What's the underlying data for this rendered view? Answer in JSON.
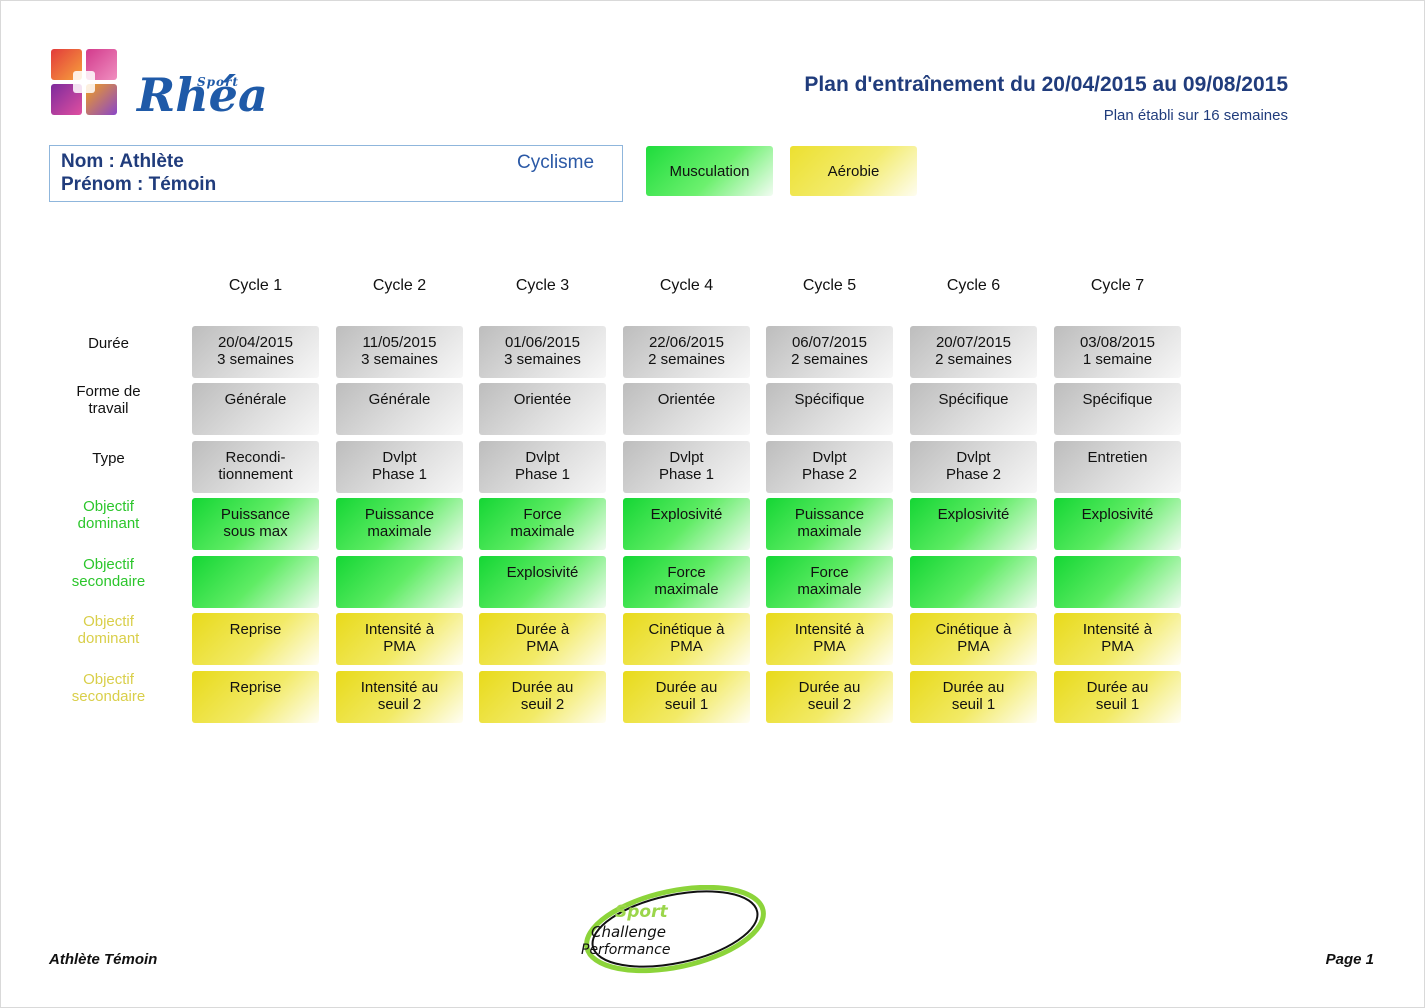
{
  "brand": {
    "sport": "Sport",
    "name": "Rhéa"
  },
  "header": {
    "title": "Plan d'entraînement du 20/04/2015 au 09/08/2015",
    "subtitle": "Plan établi sur 16 semaines"
  },
  "athlete": {
    "nom": "Nom : Athlète",
    "prenom": "Prénom : Témoin",
    "sport": "Cyclisme"
  },
  "legend": {
    "green": "Musculation",
    "yellow": "Aérobie"
  },
  "cycles": [
    "Cycle 1",
    "Cycle 2",
    "Cycle 3",
    "Cycle 4",
    "Cycle 5",
    "Cycle 6",
    "Cycle 7"
  ],
  "rows": [
    {
      "label": "Durée",
      "style": "gray",
      "cells": [
        "20/04/2015\n3 semaines",
        "11/05/2015\n3 semaines",
        "01/06/2015\n3 semaines",
        "22/06/2015\n2 semaines",
        "06/07/2015\n2 semaines",
        "20/07/2015\n2 semaines",
        "03/08/2015\n1 semaine"
      ]
    },
    {
      "label": "Forme de\ntravail",
      "style": "gray",
      "cells": [
        "Générale",
        "Générale",
        "Orientée",
        "Orientée",
        "Spécifique",
        "Spécifique",
        "Spécifique"
      ]
    },
    {
      "label": "Type",
      "style": "gray",
      "cells": [
        "Recondi-\ntionnement",
        "Dvlpt\nPhase 1",
        "Dvlpt\nPhase 1",
        "Dvlpt\nPhase 1",
        "Dvlpt\nPhase 2",
        "Dvlpt\nPhase 2",
        "Entretien"
      ]
    },
    {
      "label": "Objectif\ndominant",
      "style": "green",
      "cells": [
        "Puissance\nsous max",
        "Puissance\nmaximale",
        "Force\nmaximale",
        "Explosivité",
        "Puissance\nmaximale",
        "Explosivité",
        "Explosivité"
      ]
    },
    {
      "label": "Objectif\nsecondaire",
      "style": "green",
      "cells": [
        "",
        "",
        "Explosivité",
        "Force\nmaximale",
        "Force\nmaximale",
        "",
        ""
      ]
    },
    {
      "label": "Objectif\ndominant",
      "style": "yellow",
      "cells": [
        "Reprise",
        "Intensité à\nPMA",
        "Durée à\nPMA",
        "Cinétique à\nPMA",
        "Intensité à\nPMA",
        "Cinétique à\nPMA",
        "Intensité à\nPMA"
      ]
    },
    {
      "label": "Objectif\nsecondaire",
      "style": "yellow",
      "cells": [
        "Reprise",
        "Intensité au\nseuil 2",
        "Durée au\nseuil 2",
        "Durée au\nseuil 1",
        "Durée au\nseuil 2",
        "Durée au\nseuil 1",
        "Durée au\nseuil 1"
      ]
    }
  ],
  "footer": {
    "left": "Athlète Témoin",
    "right": "Page 1",
    "logo_lines": [
      "Sport",
      "Challenge",
      "Performance"
    ]
  }
}
